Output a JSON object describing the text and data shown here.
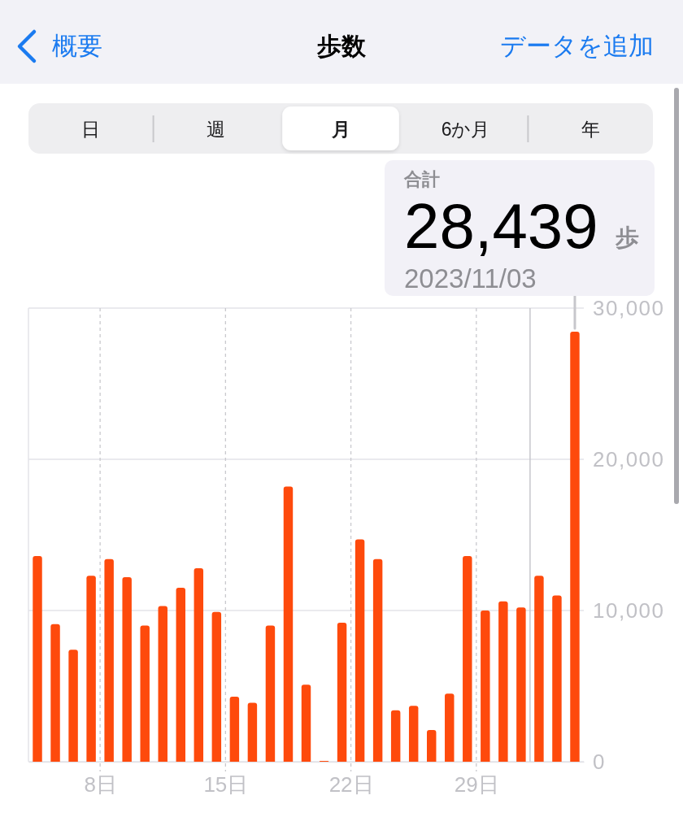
{
  "chart_data": {
    "type": "bar",
    "title": "歩数",
    "x": [
      "2023-10-04T12:00",
      "2023-10-05T12:00",
      "2023-10-06T12:00",
      "2023-10-07T12:00",
      "2023-10-08T12:00",
      "2023-10-09T12:00",
      "2023-10-10T12:00",
      "2023-10-11T12:00",
      "2023-10-12T12:00",
      "2023-10-13T12:00",
      "2023-10-14T12:00",
      "2023-10-15T12:00",
      "2023-10-16T12:00",
      "2023-10-17T12:00",
      "2023-10-18T12:00",
      "2023-10-19T12:00",
      "2023-10-20T12:00",
      "2023-10-21T12:00",
      "2023-10-22T12:00",
      "2023-10-23T12:00",
      "2023-10-24T12:00",
      "2023-10-25T12:00",
      "2023-10-26T12:00",
      "2023-10-27T12:00",
      "2023-10-28T12:00",
      "2023-10-29T12:00",
      "2023-10-30T12:00",
      "2023-10-31T12:00",
      "2023-11-01T12:00",
      "2023-11-02T12:00",
      "2023-11-03T12:00"
    ],
    "values": [
      13600,
      9100,
      7400,
      12300,
      13400,
      12200,
      9000,
      10300,
      11500,
      12800,
      9900,
      4300,
      3900,
      9000,
      18200,
      5100,
      50,
      9200,
      14700,
      13400,
      3400,
      3700,
      2100,
      4500,
      13600,
      10000,
      10600,
      10200,
      12300,
      11000,
      28439
    ],
    "color": "#fe4a0c",
    "xlim": [
      "2023-10-04",
      "2023-11-04"
    ],
    "xticks": [
      {
        "value": "2023-10-08",
        "label": "8日"
      },
      {
        "value": "2023-10-15",
        "label": "15日"
      },
      {
        "value": "2023-10-22",
        "label": "22日"
      },
      {
        "value": "2023-10-29",
        "label": "29日"
      }
    ],
    "ylim": [
      0,
      30000
    ],
    "yticks": [
      0,
      {
        "value": 10000,
        "label": "10,000"
      },
      {
        "value": 20000,
        "label": "20,000"
      },
      {
        "value": 30000,
        "label": "30,000"
      }
    ],
    "grid": true,
    "ref_lines": [
      {
        "axis": "x",
        "value": "2023-11-01",
        "color": "#c7c7cc"
      }
    ],
    "annotations": [
      "概要",
      "データを追加",
      "日",
      "週",
      "月",
      "6か月",
      "年",
      "合計",
      {
        "text": "28,439 歩",
        "x": "2023-11-03T12:00",
        "y": 28439
      },
      {
        "text": "2023/11/03",
        "x": "2023-11-03T12:00",
        "y": 28439
      }
    ]
  }
}
